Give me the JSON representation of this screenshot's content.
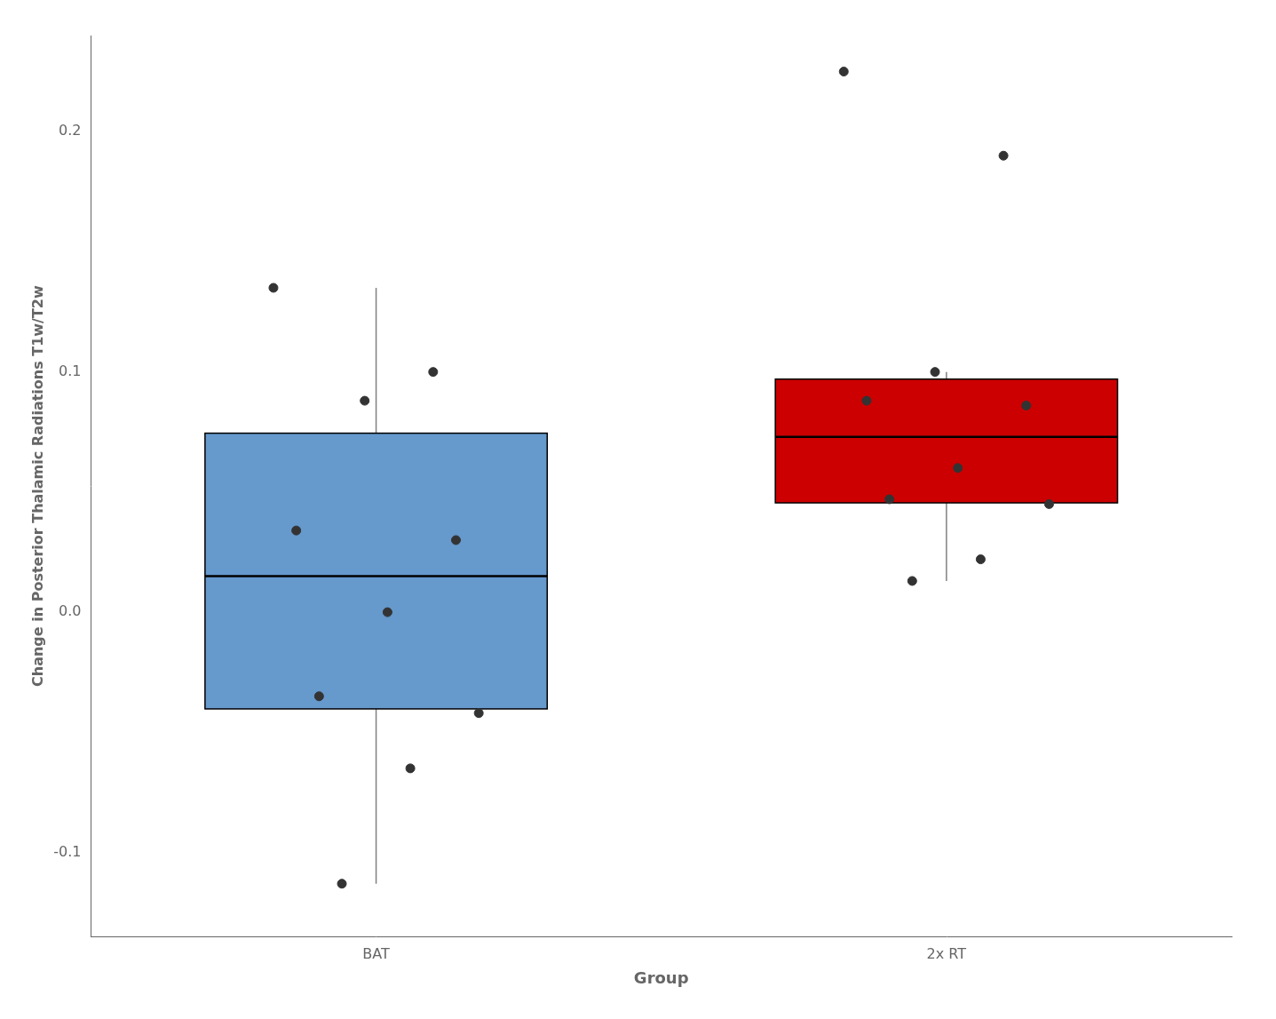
{
  "chart_data": {
    "type": "box",
    "xlabel": "Group",
    "ylabel": "Change in Posterior Thalamic Radiations T1w/T2w",
    "categories": [
      "BAT",
      "2x RT"
    ],
    "series": [
      {
        "type": "box",
        "colors": [
          "#6699CC",
          "#CC0000"
        ],
        "whisker_low": [
          -0.113,
          0.013
        ],
        "q1": [
          -0.04025,
          0.0455
        ],
        "median": [
          0.015,
          0.073
        ],
        "q3": [
          0.0745,
          0.097
        ],
        "whisker_high": [
          0.135,
          0.1
        ]
      },
      {
        "type": "scatter",
        "color": "#333333",
        "values": [
          [
            0.135,
            0.1,
            0.088,
            0.034,
            0.03,
            0.0,
            -0.035,
            -0.042,
            -0.065,
            -0.113
          ],
          [
            0.225,
            0.19,
            0.1,
            0.088,
            0.086,
            0.06,
            0.047,
            0.045,
            0.022,
            0.013
          ]
        ]
      }
    ],
    "ylim": [
      -0.135,
      0.24
    ],
    "yticks": [
      -0.1,
      {
        "value": 0,
        "label": "0.0"
      },
      0.1,
      0.2
    ],
    "grid": false
  }
}
